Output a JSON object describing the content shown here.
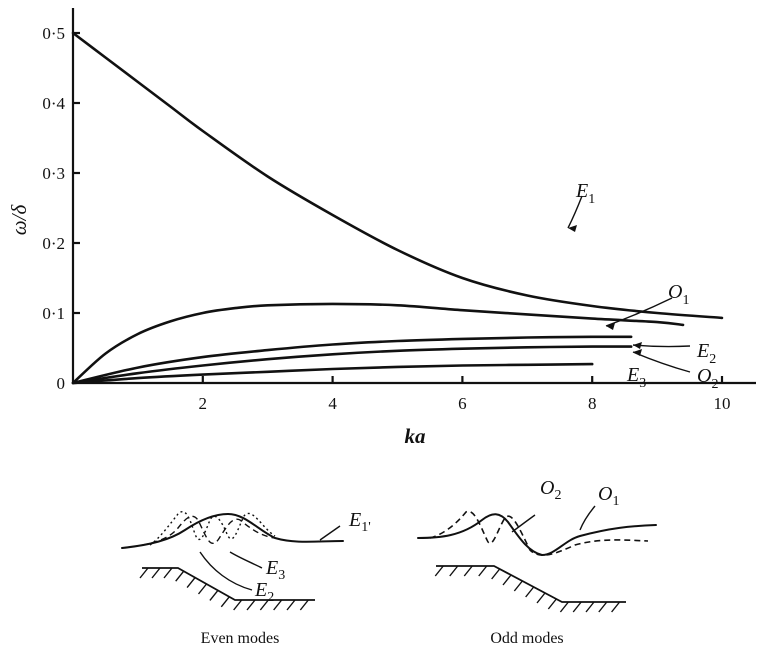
{
  "chart_data": {
    "type": "line",
    "xlabel": "ka",
    "ylabel": "ω/δ",
    "xlim": [
      0,
      10.5
    ],
    "ylim": [
      0,
      0.58
    ],
    "x_ticks": [
      2,
      4,
      6,
      8,
      10
    ],
    "x_tick_labels": [
      "2",
      "4",
      "6",
      "8",
      "10"
    ],
    "y_ticks": [
      0,
      0.1,
      0.2,
      0.3,
      0.4,
      0.5
    ],
    "y_tick_labels": [
      "0",
      "0·1",
      "0·2",
      "0·3",
      "0·4",
      "0·5"
    ],
    "series": [
      {
        "name": "E",
        "sub": "1",
        "x": [
          0,
          0.5,
          1,
          1.5,
          2,
          3,
          4,
          5,
          6,
          7,
          8,
          9,
          10
        ],
        "y": [
          0.5,
          0.465,
          0.43,
          0.395,
          0.36,
          0.295,
          0.24,
          0.19,
          0.15,
          0.125,
          0.11,
          0.1,
          0.093
        ]
      },
      {
        "name": "O",
        "sub": "1",
        "x": [
          0,
          0.5,
          1,
          1.5,
          2,
          2.5,
          3,
          4,
          5,
          6,
          7,
          8,
          9,
          9.4
        ],
        "y": [
          0,
          0.042,
          0.07,
          0.088,
          0.1,
          0.107,
          0.111,
          0.113,
          0.111,
          0.104,
          0.098,
          0.092,
          0.087,
          0.083
        ]
      },
      {
        "name": "E",
        "sub": "2",
        "x": [
          0,
          1,
          2,
          3,
          4,
          5,
          6,
          7,
          8,
          8.6
        ],
        "y": [
          0,
          0.022,
          0.037,
          0.047,
          0.055,
          0.06,
          0.063,
          0.065,
          0.066,
          0.066
        ]
      },
      {
        "name": "O",
        "sub": "2",
        "x": [
          0,
          1,
          2,
          3,
          4,
          5,
          6,
          7,
          8,
          8.6
        ],
        "y": [
          0,
          0.014,
          0.025,
          0.034,
          0.041,
          0.046,
          0.049,
          0.051,
          0.052,
          0.052
        ]
      },
      {
        "name": "E",
        "sub": "3",
        "x": [
          0,
          1,
          2,
          3,
          4,
          5,
          6,
          7,
          8
        ],
        "y": [
          0,
          0.007,
          0.012,
          0.016,
          0.02,
          0.023,
          0.025,
          0.026,
          0.027
        ]
      }
    ]
  },
  "sketches": {
    "even_caption": "Even modes",
    "odd_caption": "Odd modes",
    "even_labels": [
      {
        "name": "E",
        "sub": "1'"
      },
      {
        "name": "E",
        "sub": "3"
      },
      {
        "name": "E",
        "sub": "2"
      }
    ],
    "odd_labels": [
      {
        "name": "O",
        "sub": "2"
      },
      {
        "name": "O",
        "sub": "1"
      }
    ]
  }
}
